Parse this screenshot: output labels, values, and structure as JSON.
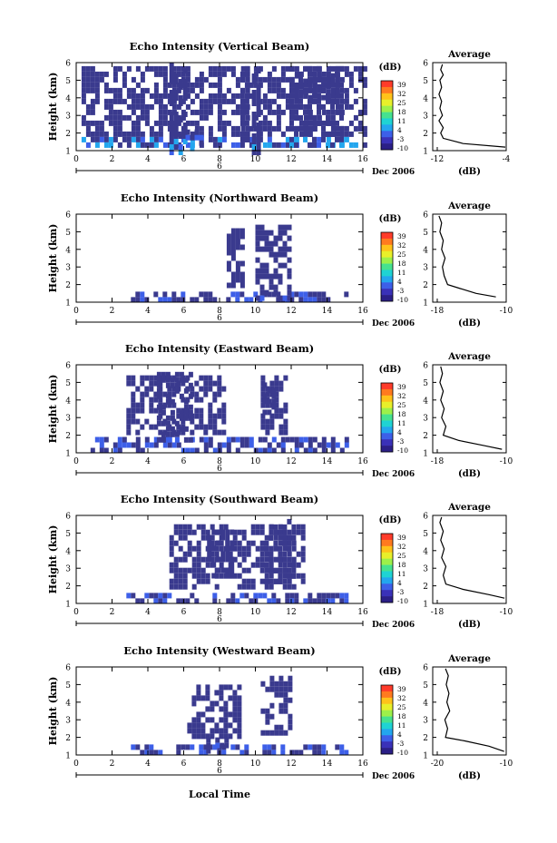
{
  "chart_data": {
    "type": "heatmap",
    "colorbar": {
      "label": "(dB)",
      "ticks": [
        "39",
        "32",
        "25",
        "18",
        "11",
        "4",
        "-3",
        "-10"
      ],
      "colors": [
        "#ff3b2a",
        "#ff7a1f",
        "#ffc21a",
        "#e8ef2a",
        "#9df04a",
        "#46e28f",
        "#1fd3d3",
        "#23a6ee",
        "#3d5fe8",
        "#3a31b8",
        "#2b1f87"
      ]
    },
    "shared": {
      "ylabel": "Height (km)",
      "xlim": [
        0,
        16
      ],
      "ylim": [
        1,
        6
      ],
      "xticks": [
        "0",
        "2",
        "4",
        "6",
        "8",
        "10",
        "12",
        "14",
        "16"
      ],
      "yticks": [
        "1",
        "2",
        "3",
        "4",
        "5",
        "6"
      ],
      "date_label": "Dec 2006",
      "date_day": "6",
      "xlabel": "Local Time",
      "avg_title": "Average",
      "avg_xlabel": "(dB)"
    },
    "panels": [
      {
        "title": "Echo Intensity (Vertical Beam)",
        "avg_xticks": [
          "-12",
          "-4"
        ],
        "avg_xlim": [
          -12,
          -4
        ],
        "avg_profile": [
          [
            -4,
            1.2
          ],
          [
            -9,
            1.4
          ],
          [
            -11.3,
            1.7
          ],
          [
            -11.6,
            2.0
          ],
          [
            -11.3,
            2.3
          ],
          [
            -11.8,
            2.7
          ],
          [
            -11.4,
            3.0
          ],
          [
            -11.7,
            3.4
          ],
          [
            -11.5,
            3.8
          ],
          [
            -11.8,
            4.2
          ],
          [
            -11.5,
            4.6
          ],
          [
            -11.7,
            5.0
          ],
          [
            -11.3,
            5.3
          ],
          [
            -11.6,
            5.6
          ],
          [
            -11.4,
            5.9
          ]
        ],
        "cells": [
          [
            0.3,
            16.0,
            1.2,
            5.8
          ],
          [
            5.2,
            6.0,
            1.0,
            6.0
          ],
          [
            6.1,
            7.0,
            1.2,
            2.2
          ],
          [
            9.2,
            9.5,
            1.2,
            5.8
          ],
          [
            9.8,
            10.1,
            1.0,
            6.0
          ],
          [
            11.9,
            14.8,
            1.2,
            5.8
          ],
          [
            12.2,
            14.7,
            4.0,
            5.4
          ]
        ]
      },
      {
        "title": "Echo Intensity (Northward Beam)",
        "avg_xticks": [
          "-18",
          "-10"
        ],
        "avg_xlim": [
          -18,
          -10
        ],
        "avg_profile": [
          [
            -11.2,
            1.3
          ],
          [
            -13.5,
            1.5
          ],
          [
            -15.5,
            1.8
          ],
          [
            -16.8,
            2.0
          ],
          [
            -17.2,
            2.5
          ],
          [
            -17.4,
            3.0
          ],
          [
            -17.1,
            3.5
          ],
          [
            -17.5,
            4.0
          ],
          [
            -17.3,
            4.5
          ],
          [
            -17.7,
            5.0
          ],
          [
            -17.5,
            5.5
          ],
          [
            -17.8,
            5.9
          ]
        ],
        "cells": [
          [
            2.8,
            15.2,
            1.1,
            1.6
          ],
          [
            8.4,
            9.4,
            1.8,
            5.2
          ],
          [
            10.0,
            12.0,
            1.2,
            5.4
          ]
        ]
      },
      {
        "title": "Echo Intensity (Eastward Beam)",
        "avg_xticks": [
          "-18",
          "-10"
        ],
        "avg_xlim": [
          -18,
          -10
        ],
        "avg_profile": [
          [
            -10.5,
            1.2
          ],
          [
            -12.5,
            1.4
          ],
          [
            -15.5,
            1.7
          ],
          [
            -17.3,
            2.0
          ],
          [
            -17.0,
            2.5
          ],
          [
            -17.5,
            3.0
          ],
          [
            -17.2,
            3.5
          ],
          [
            -17.6,
            4.0
          ],
          [
            -17.3,
            4.5
          ],
          [
            -17.7,
            5.0
          ],
          [
            -17.4,
            5.5
          ],
          [
            -17.6,
            5.9
          ]
        ],
        "cells": [
          [
            0.8,
            15.2,
            1.2,
            1.9
          ],
          [
            2.8,
            8.2,
            2.0,
            5.4
          ],
          [
            4.5,
            6.5,
            1.8,
            5.6
          ],
          [
            10.3,
            11.8,
            2.2,
            5.4
          ],
          [
            10.4,
            11.0,
            3.0,
            5.0
          ]
        ]
      },
      {
        "title": "Echo Intensity (Southward Beam)",
        "avg_xticks": [
          "-18",
          "-10"
        ],
        "avg_xlim": [
          -18,
          -10
        ],
        "avg_profile": [
          [
            -10.2,
            1.3
          ],
          [
            -12.0,
            1.5
          ],
          [
            -15.0,
            1.8
          ],
          [
            -17.0,
            2.1
          ],
          [
            -17.3,
            2.6
          ],
          [
            -17.0,
            3.1
          ],
          [
            -17.5,
            3.6
          ],
          [
            -17.2,
            4.1
          ],
          [
            -17.6,
            4.6
          ],
          [
            -17.3,
            5.1
          ],
          [
            -17.7,
            5.6
          ],
          [
            -17.5,
            5.9
          ]
        ],
        "cells": [
          [
            2.8,
            15.3,
            1.2,
            1.6
          ],
          [
            5.2,
            12.6,
            2.0,
            5.5
          ],
          [
            7.3,
            8.6,
            2.5,
            5.2
          ],
          [
            10.5,
            12.2,
            2.3,
            5.8
          ]
        ]
      },
      {
        "title": "Echo Intensity (Westward Beam)",
        "avg_xticks": [
          "-20",
          "-10"
        ],
        "avg_xlim": [
          -20,
          -10
        ],
        "avg_profile": [
          [
            -10.3,
            1.2
          ],
          [
            -12.5,
            1.5
          ],
          [
            -16.0,
            1.8
          ],
          [
            -18.8,
            2.0
          ],
          [
            -18.5,
            2.5
          ],
          [
            -18.9,
            3.0
          ],
          [
            -18.2,
            3.5
          ],
          [
            -18.6,
            4.0
          ],
          [
            -18.3,
            4.5
          ],
          [
            -18.7,
            5.0
          ],
          [
            -18.4,
            5.5
          ],
          [
            -18.8,
            5.9
          ]
        ],
        "cells": [
          [
            2.8,
            15.2,
            1.2,
            1.6
          ],
          [
            6.2,
            9.0,
            2.2,
            5.0
          ],
          [
            10.3,
            12.0,
            2.3,
            5.5
          ],
          [
            7.0,
            8.5,
            1.3,
            2.0
          ]
        ]
      }
    ]
  }
}
